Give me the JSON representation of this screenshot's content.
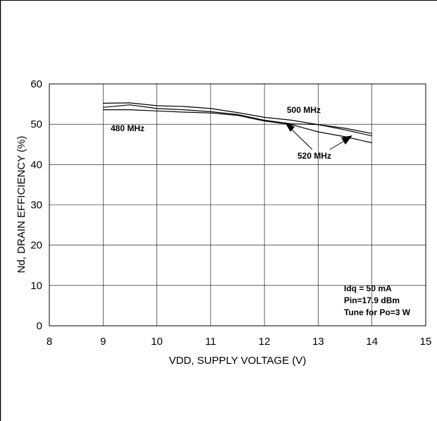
{
  "chart_data": {
    "type": "line",
    "title": "",
    "xlabel": "VDD, SUPPLY VOLTAGE (V)",
    "ylabel": "Nd, DRAIN EFFICIENCY (%)",
    "xlim": [
      8,
      15
    ],
    "ylim": [
      0,
      60
    ],
    "xticks": [
      8,
      9,
      10,
      11,
      12,
      13,
      14,
      15
    ],
    "yticks": [
      0,
      10,
      20,
      30,
      40,
      50,
      60
    ],
    "grid": true,
    "legend": "none",
    "series": [
      {
        "name": "500 MHz",
        "x": [
          9,
          9.5,
          10,
          10.5,
          11,
          11.5,
          12,
          12.5,
          13,
          13.5,
          14
        ],
        "y": [
          55.2,
          55.3,
          54.6,
          54.4,
          53.9,
          52.9,
          51.7,
          51.0,
          49.9,
          49.0,
          47.7
        ]
      },
      {
        "name": "480 MHz",
        "x": [
          9,
          9.5,
          10,
          10.5,
          11,
          11.5,
          12,
          12.5,
          13,
          13.5,
          14
        ],
        "y": [
          54.2,
          54.8,
          53.9,
          53.6,
          53.1,
          52.4,
          51.0,
          50.1,
          49.9,
          48.6,
          47.1
        ]
      },
      {
        "name": "520 MHz",
        "x": [
          9,
          9.5,
          10,
          10.5,
          11,
          11.5,
          12,
          12.5,
          13,
          13.5,
          14
        ],
        "y": [
          53.6,
          53.6,
          53.3,
          53.0,
          52.8,
          52.2,
          50.8,
          49.9,
          48.1,
          46.9,
          45.4
        ]
      }
    ],
    "annotations": {
      "label_500": "500 MHz",
      "label_480": "480 MHz",
      "label_520": "520 MHz",
      "conditions": [
        "Idq = 50 mA",
        "Pin=17.9 dBm",
        "Tune for Po=3 W"
      ]
    }
  }
}
